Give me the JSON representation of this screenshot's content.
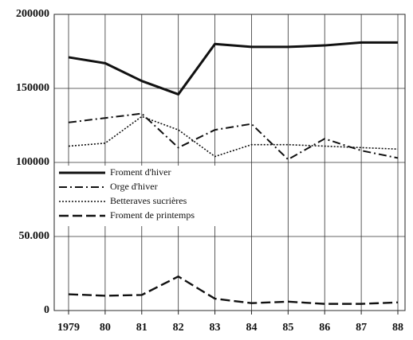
{
  "chart_data": {
    "type": "line",
    "categories": [
      "1979",
      "80",
      "81",
      "82",
      "83",
      "84",
      "85",
      "86",
      "87",
      "88"
    ],
    "series": [
      {
        "name": "Froment d'hiver",
        "color": "#111111",
        "dash": "solid",
        "values": [
          171000,
          167000,
          155000,
          146000,
          180000,
          178000,
          178000,
          179000,
          181000,
          181000
        ]
      },
      {
        "name": "Orge d'hiver",
        "color": "#111111",
        "dash": "dashdot",
        "values": [
          127000,
          130000,
          133000,
          110000,
          122000,
          126000,
          102000,
          116000,
          108000,
          103000
        ]
      },
      {
        "name": "Betteraves sucrières",
        "color": "#111111",
        "dash": "dotted",
        "values": [
          111000,
          113000,
          131000,
          122000,
          104000,
          112000,
          112000,
          111000,
          110000,
          109000
        ]
      },
      {
        "name": "Froment de printemps",
        "color": "#111111",
        "dash": "dashed",
        "values": [
          11000,
          10000,
          10500,
          23000,
          8000,
          5000,
          6000,
          4500,
          4500,
          5500
        ]
      }
    ],
    "ylim": [
      0,
      200000
    ],
    "yticks": [
      0,
      {
        "value": 50000,
        "label": "50.000"
      },
      100000,
      150000,
      200000
    ],
    "grid": true,
    "legend": "center left"
  }
}
